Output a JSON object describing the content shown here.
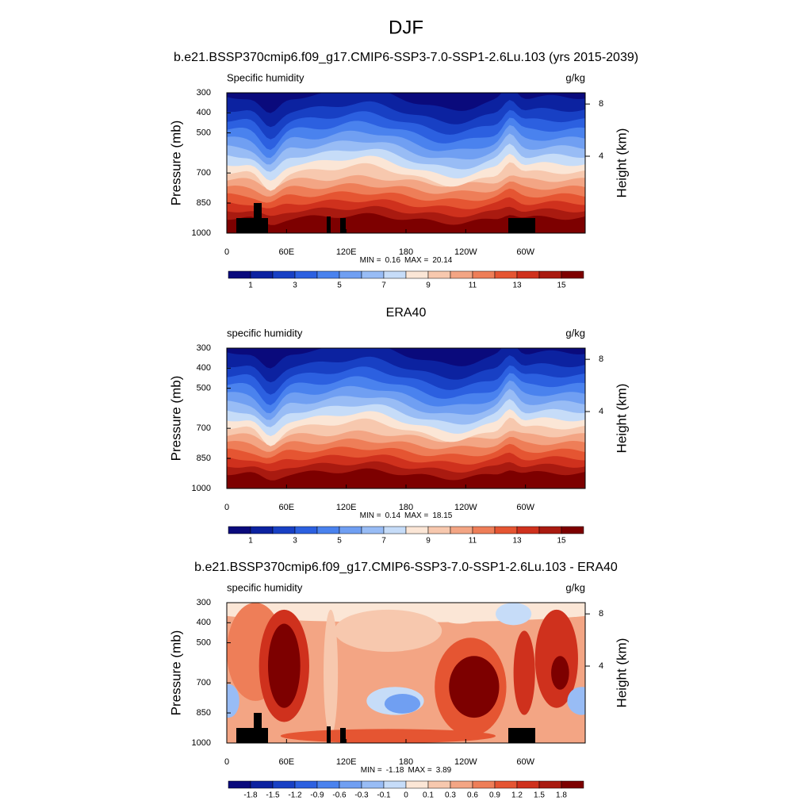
{
  "page": {
    "title": "DJF"
  },
  "chart_data": [
    {
      "type": "contour",
      "title": "b.e21.BSSP370cmip6.f09_g17.CMIP6-SSP3-7.0-SSP1-2.6Lu.103 (yrs 2015-2039)",
      "left_label": "Specific humidity",
      "right_label": "g/kg",
      "ylabel": "Pressure (mb)",
      "y2label": "Height (km)",
      "xlim": [
        0,
        360
      ],
      "xticks": [
        0,
        {
          "value": 60,
          "label": "60E"
        },
        {
          "value": 120,
          "label": "120E"
        },
        180,
        {
          "value": 240,
          "label": "120W"
        },
        {
          "value": 300,
          "label": "60W"
        }
      ],
      "ylim": [
        1000,
        300
      ],
      "yticks": [
        300,
        400,
        500,
        700,
        850,
        1000
      ],
      "y2ticks": [
        4,
        8
      ],
      "stats": {
        "min_label": "MIN =",
        "min": 0.16,
        "max_label": "MAX =",
        "max": 20.14
      },
      "field": "humidity",
      "topography": true,
      "colorbar": {
        "colors": [
          "#0a0a7c",
          "#0c22a0",
          "#1840c4",
          "#2c60e0",
          "#4a82ee",
          "#709ff2",
          "#98bcf5",
          "#c6dcf8",
          "#fbe6d6",
          "#f7c8ae",
          "#f3a584",
          "#ee7e58",
          "#e55532",
          "#cf311d",
          "#a91a10",
          "#7d0000"
        ],
        "levels": [
          1,
          2,
          3,
          4,
          5,
          6,
          7,
          8,
          9,
          10,
          11,
          12,
          13,
          14,
          15
        ],
        "label_stride": 2
      }
    },
    {
      "type": "contour",
      "title": "ERA40",
      "left_label": "specific humidity",
      "right_label": "g/kg",
      "ylabel": "Pressure (mb)",
      "y2label": "Height (km)",
      "xlim": [
        0,
        360
      ],
      "xticks": [
        0,
        {
          "value": 60,
          "label": "60E"
        },
        {
          "value": 120,
          "label": "120E"
        },
        180,
        {
          "value": 240,
          "label": "120W"
        },
        {
          "value": 300,
          "label": "60W"
        }
      ],
      "ylim": [
        1000,
        300
      ],
      "yticks": [
        300,
        400,
        500,
        700,
        850,
        1000
      ],
      "y2ticks": [
        4,
        8
      ],
      "stats": {
        "min_label": "MIN =",
        "min": 0.14,
        "max_label": "MAX =",
        "max": 18.15
      },
      "field": "humidity",
      "topography": false,
      "colorbar": {
        "colors": [
          "#0a0a7c",
          "#0c22a0",
          "#1840c4",
          "#2c60e0",
          "#4a82ee",
          "#709ff2",
          "#98bcf5",
          "#c6dcf8",
          "#fbe6d6",
          "#f7c8ae",
          "#f3a584",
          "#ee7e58",
          "#e55532",
          "#cf311d",
          "#a91a10",
          "#7d0000"
        ],
        "levels": [
          1,
          2,
          3,
          4,
          5,
          6,
          7,
          8,
          9,
          10,
          11,
          12,
          13,
          14,
          15
        ],
        "label_stride": 2
      }
    },
    {
      "type": "contour",
      "title": "b.e21.BSSP370cmip6.f09_g17.CMIP6-SSP3-7.0-SSP1-2.6Lu.103 - ERA40",
      "left_label": "specific humidity",
      "right_label": "g/kg",
      "ylabel": "Pressure (mb)",
      "y2label": "Height (km)",
      "xlim": [
        0,
        360
      ],
      "xticks": [
        0,
        {
          "value": 60,
          "label": "60E"
        },
        {
          "value": 120,
          "label": "120E"
        },
        180,
        {
          "value": 240,
          "label": "120W"
        },
        {
          "value": 300,
          "label": "60W"
        }
      ],
      "ylim": [
        1000,
        300
      ],
      "yticks": [
        300,
        400,
        500,
        700,
        850,
        1000
      ],
      "y2ticks": [
        4,
        8
      ],
      "stats": {
        "min_label": "MIN =",
        "min": -1.18,
        "max_label": "MAX =",
        "max": 3.89
      },
      "field": "difference",
      "topography": true,
      "colorbar": {
        "colors": [
          "#0a0a7c",
          "#0c22a0",
          "#1840c4",
          "#2c60e0",
          "#4a82ee",
          "#709ff2",
          "#98bcf5",
          "#c6dcf8",
          "#fbe6d6",
          "#f7c8ae",
          "#f3a584",
          "#ee7e58",
          "#e55532",
          "#cf311d",
          "#a91a10",
          "#7d0000"
        ],
        "levels": [
          -1.8,
          -1.5,
          -1.2,
          -0.9,
          -0.6,
          -0.3,
          -0.1,
          0,
          0.1,
          0.3,
          0.6,
          0.9,
          1.2,
          1.5,
          1.8
        ],
        "label_stride": 1
      }
    }
  ]
}
